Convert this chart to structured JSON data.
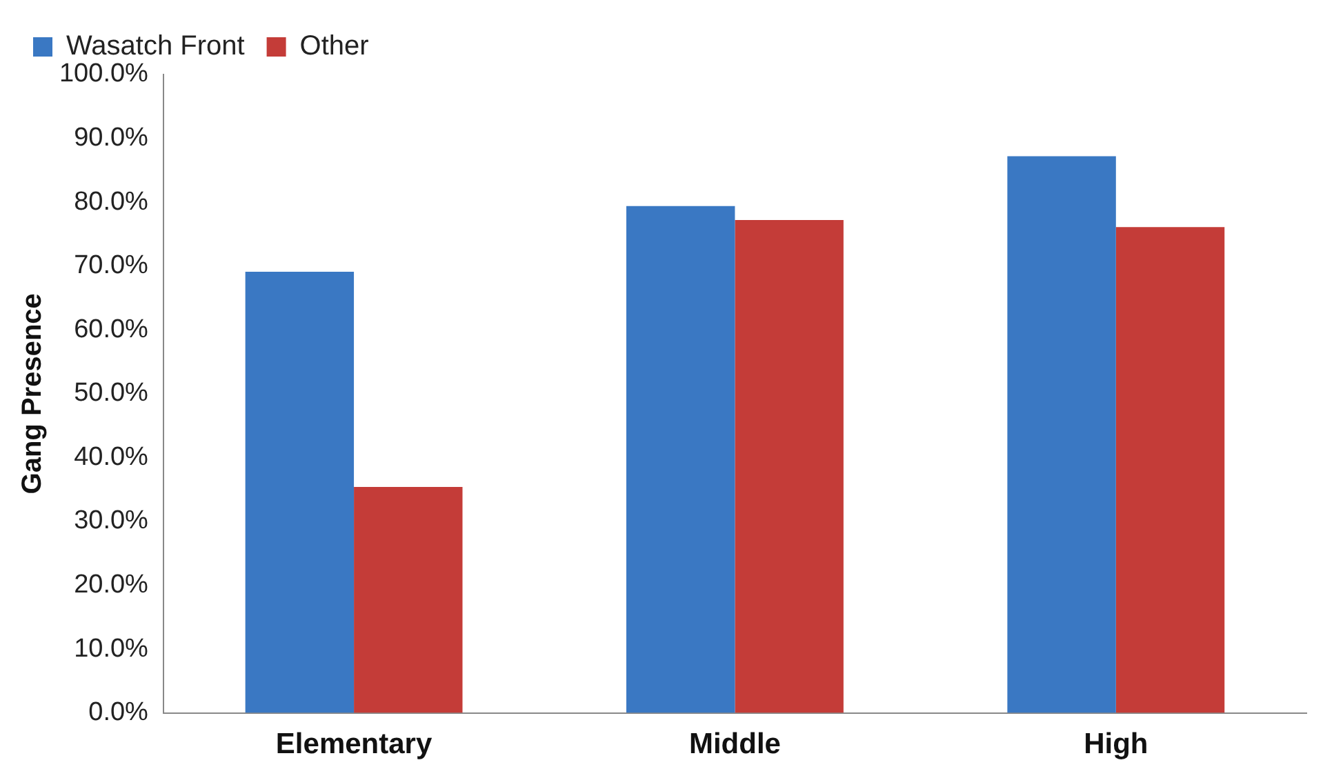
{
  "chart_data": {
    "type": "bar",
    "ylabel": "Gang Presence",
    "categories": [
      "Elementary",
      "Middle",
      "High"
    ],
    "series": [
      {
        "name": "Wasatch Front",
        "color": "#3a78c3",
        "values": [
          69.1,
          79.4,
          87.2
        ]
      },
      {
        "name": "Other",
        "color": "#c43c38",
        "values": [
          35.4,
          77.2,
          76.1
        ]
      }
    ],
    "ylim": [
      0,
      100
    ],
    "yticks": [
      {
        "value": 0,
        "label": "0.0%"
      },
      {
        "value": 10,
        "label": "10.0%"
      },
      {
        "value": 20,
        "label": "20.0%"
      },
      {
        "value": 30,
        "label": "30.0%"
      },
      {
        "value": 40,
        "label": "40.0%"
      },
      {
        "value": 50,
        "label": "50.0%"
      },
      {
        "value": 60,
        "label": "60.0%"
      },
      {
        "value": 70,
        "label": "70.0%"
      },
      {
        "value": 80,
        "label": "80.0%"
      },
      {
        "value": 90,
        "label": "90.0%"
      },
      {
        "value": 100,
        "label": "100.0%"
      }
    ],
    "legend": "top left"
  }
}
